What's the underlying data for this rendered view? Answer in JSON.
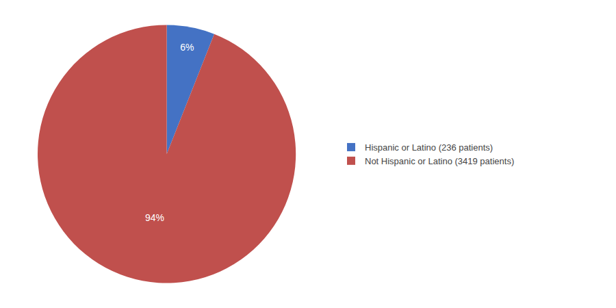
{
  "chart_data": {
    "type": "pie",
    "categories": [
      "Hispanic or Latino (236 patients)",
      "Not Hispanic or Latino (3419 patients)"
    ],
    "values": [
      6,
      94
    ],
    "value_labels": [
      "6%",
      "94%"
    ],
    "colors": [
      "#4472C4",
      "#C0504D"
    ],
    "data_labels": true,
    "legend": "right"
  }
}
